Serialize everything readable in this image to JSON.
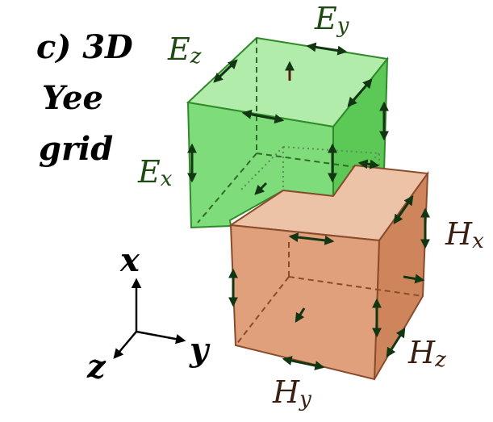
{
  "title": {
    "lines": [
      "c) 3D",
      "Yee",
      "grid"
    ]
  },
  "electric_labels": {
    "ez": {
      "base": "E",
      "sub": "z"
    },
    "ey": {
      "base": "E",
      "sub": "y"
    },
    "ex": {
      "base": "E",
      "sub": "x"
    }
  },
  "magnetic_labels": {
    "hx": {
      "base": "H",
      "sub": "x"
    },
    "hz": {
      "base": "H",
      "sub": "z"
    },
    "hy": {
      "base": "H",
      "sub": "y"
    }
  },
  "axes": {
    "x": "x",
    "y": "y",
    "z": "z"
  },
  "colors": {
    "e_cube_front": "#7fdc7a",
    "e_cube_top": "#b2ecab",
    "e_cube_side": "#5cc956",
    "e_edge": "#2f8a2a",
    "h_cube_front": "#dfa07b",
    "h_cube_top": "#ecc3a7",
    "h_cube_side": "#cf855c",
    "h_edge": "#8a4b2c",
    "e_arrow": "#0f3a0f",
    "h_arrow": "#1a2a14"
  }
}
